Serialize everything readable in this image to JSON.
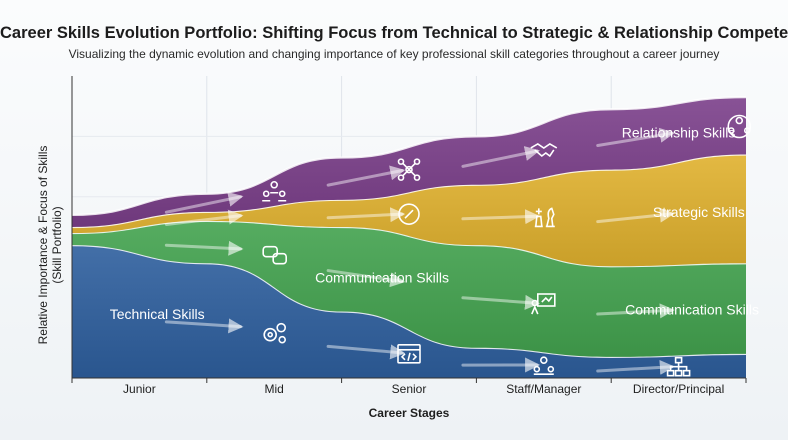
{
  "chart_data": {
    "type": "area",
    "stacked": true,
    "title": "Career Skills Evolution Portfolio: Shifting Focus from Technical to Strategic & Relationship Competence",
    "subtitle": "Visualizing the dynamic evolution and changing importance of key professional skill categories throughout a career journey",
    "xlabel": "Career Stages",
    "ylabel_line1": "Relative Importance & Focus of Skills",
    "ylabel_line2": "(Skill Portfolio)",
    "categories": [
      "Junior",
      "Mid",
      "Senior",
      "Staff/Manager",
      "Director/Principal"
    ],
    "x": [
      0,
      1,
      2,
      3,
      4,
      5
    ],
    "ylim": [
      0,
      100
    ],
    "grid": true,
    "series": [
      {
        "name": "Technical Skills",
        "color": "#2e5f9e",
        "values": [
          44,
          38,
          22,
          10,
          7,
          8
        ]
      },
      {
        "name": "Communication Skills",
        "color": "#43a34f",
        "values": [
          4,
          14,
          28,
          34,
          30,
          30
        ]
      },
      {
        "name": "Strategic Skills",
        "color": "#e0b12e",
        "values": [
          2,
          3,
          9,
          20,
          32,
          36
        ]
      },
      {
        "name": "Relationship Skills",
        "color": "#7b3f8a",
        "values": [
          4,
          6,
          14,
          16,
          20,
          19
        ]
      }
    ],
    "labels": [
      {
        "text": "Technical Skills",
        "series": 0,
        "x": 0.28
      },
      {
        "text": "Communication Skills",
        "series": 1,
        "x": 2.3
      },
      {
        "text": "Communication Skills",
        "series": 1,
        "x": 4.6
      },
      {
        "text": "Strategic Skills",
        "series": 2,
        "x": 4.65
      },
      {
        "text": "Relationship Skills",
        "series": 3,
        "x": 4.5
      }
    ],
    "icons": [
      {
        "name": "gears-icon",
        "series": 0,
        "x": 1.5
      },
      {
        "name": "code-window-icon",
        "series": 0,
        "x": 2.5
      },
      {
        "name": "people-network-icon",
        "series": 0,
        "x": 3.5
      },
      {
        "name": "org-chart-icon",
        "series": 0,
        "x": 4.5
      },
      {
        "name": "chat-bubbles-icon",
        "series": 1,
        "x": 1.5
      },
      {
        "name": "presentation-icon",
        "series": 1,
        "x": 3.5
      },
      {
        "name": "compass-icon",
        "series": 2,
        "x": 2.5
      },
      {
        "name": "chess-icon",
        "series": 2,
        "x": 3.5
      },
      {
        "name": "team-icon",
        "series": 3,
        "x": 1.5
      },
      {
        "name": "network-nodes-icon",
        "series": 3,
        "x": 2.5
      },
      {
        "name": "handshake-icon",
        "series": 3,
        "x": 3.5
      },
      {
        "name": "leader-icon",
        "series": 3,
        "x": 4.95
      }
    ]
  }
}
